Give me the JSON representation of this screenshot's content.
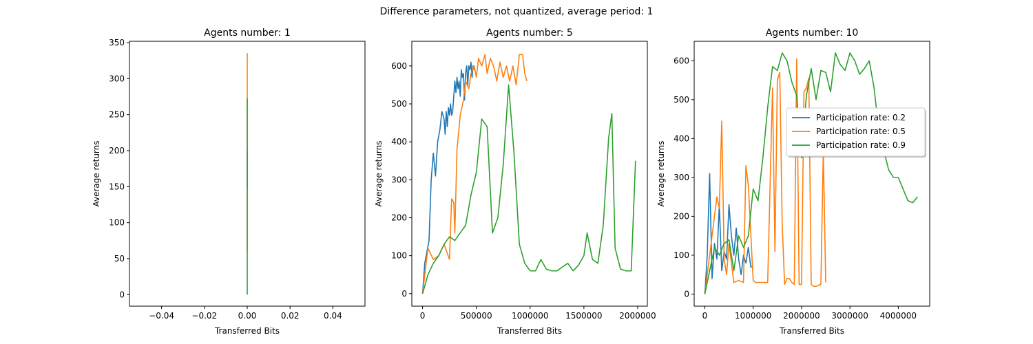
{
  "figure": {
    "suptitle": "Difference parameters, not quantized, average period: 1"
  },
  "colors": {
    "series_0.2": "#1f77b4",
    "series_0.5": "#ff7f0e",
    "series_0.9": "#2ca02c"
  },
  "chart_data": [
    {
      "type": "line",
      "title": "Agents number: 1",
      "xlabel": "Transferred Bits",
      "ylabel": "Average returns",
      "xlim": [
        -0.055,
        0.055
      ],
      "ylim": [
        -16,
        352
      ],
      "xticks": [
        -0.04,
        -0.02,
        0.0,
        0.02,
        0.04
      ],
      "xtick_labels": [
        "−0.04",
        "−0.02",
        "0.00",
        "0.02",
        "0.04"
      ],
      "yticks": [
        0,
        50,
        100,
        150,
        200,
        250,
        300,
        350
      ],
      "ytick_labels": [
        "0",
        "50",
        "100",
        "150",
        "200",
        "250",
        "300",
        "350"
      ],
      "grid": false,
      "legend": null,
      "series": [
        {
          "color_key": "series_0.5",
          "x": [
            0,
            0,
            0
          ],
          "y": [
            60,
            335,
            230
          ]
        },
        {
          "color_key": "series_0.2",
          "x": [
            0,
            0
          ],
          "y": [
            150,
            200
          ]
        },
        {
          "color_key": "series_0.9",
          "x": [
            0,
            0,
            0
          ],
          "y": [
            0,
            272,
            120
          ]
        }
      ]
    },
    {
      "type": "line",
      "title": "Agents number: 5",
      "xlabel": "Transferred Bits",
      "ylabel": "Average returns",
      "xlim": [
        -100000,
        2090000
      ],
      "ylim": [
        -33,
        665
      ],
      "xticks": [
        0,
        500000,
        1000000,
        1500000,
        2000000
      ],
      "xtick_labels": [
        "0",
        "500000",
        "1000000",
        "1500000",
        "2000000"
      ],
      "yticks": [
        0,
        100,
        200,
        300,
        400,
        500,
        600
      ],
      "ytick_labels": [
        "0",
        "100",
        "200",
        "300",
        "400",
        "500",
        "600"
      ],
      "grid": false,
      "legend": null,
      "series": [
        {
          "color_key": "series_0.2",
          "x": [
            0,
            20000,
            40000,
            60000,
            80000,
            100000,
            120000,
            140000,
            160000,
            180000,
            200000,
            210000,
            220000,
            230000,
            240000,
            250000,
            260000,
            270000,
            280000,
            290000,
            300000,
            310000,
            320000,
            330000,
            340000,
            350000,
            360000,
            370000,
            380000,
            390000,
            400000,
            410000,
            420000,
            430000,
            440000,
            450000,
            460000,
            470000,
            480000
          ],
          "y": [
            0,
            80,
            110,
            140,
            300,
            370,
            310,
            400,
            430,
            480,
            460,
            420,
            480,
            440,
            490,
            470,
            500,
            470,
            480,
            520,
            560,
            530,
            570,
            540,
            560,
            520,
            590,
            570,
            580,
            510,
            580,
            600,
            550,
            600,
            590,
            610,
            570,
            600,
            590
          ]
        },
        {
          "color_key": "series_0.5",
          "x": [
            0,
            50000,
            100000,
            150000,
            200000,
            250000,
            270000,
            290000,
            300000,
            320000,
            350000,
            380000,
            400000,
            430000,
            450000,
            480000,
            500000,
            520000,
            550000,
            580000,
            600000,
            630000,
            660000,
            690000,
            720000,
            750000,
            780000,
            810000,
            840000,
            870000,
            900000,
            930000,
            950000,
            970000
          ],
          "y": [
            0,
            120,
            90,
            100,
            130,
            90,
            250,
            240,
            160,
            380,
            470,
            510,
            560,
            540,
            580,
            600,
            570,
            620,
            600,
            630,
            580,
            620,
            600,
            560,
            610,
            570,
            600,
            560,
            600,
            550,
            630,
            630,
            580,
            560
          ]
        },
        {
          "color_key": "series_0.9",
          "x": [
            0,
            50000,
            100000,
            150000,
            200000,
            250000,
            300000,
            350000,
            400000,
            450000,
            500000,
            550000,
            600000,
            650000,
            700000,
            750000,
            800000,
            850000,
            900000,
            950000,
            1000000,
            1050000,
            1100000,
            1150000,
            1200000,
            1250000,
            1300000,
            1350000,
            1400000,
            1450000,
            1500000,
            1530000,
            1580000,
            1630000,
            1680000,
            1730000,
            1760000,
            1790000,
            1840000,
            1890000,
            1940000,
            1980000
          ],
          "y": [
            0,
            50,
            80,
            100,
            130,
            150,
            140,
            160,
            180,
            260,
            320,
            460,
            440,
            160,
            200,
            340,
            550,
            370,
            130,
            80,
            60,
            60,
            90,
            65,
            60,
            60,
            70,
            80,
            60,
            75,
            100,
            160,
            90,
            80,
            180,
            410,
            475,
            120,
            65,
            60,
            60,
            350
          ]
        }
      ]
    },
    {
      "type": "line",
      "title": "Agents number: 10",
      "xlabel": "Transferred Bits",
      "ylabel": "Average returns",
      "xlim": [
        -220000,
        4650000
      ],
      "ylim": [
        -31,
        650
      ],
      "xticks": [
        0,
        1000000,
        2000000,
        3000000,
        4000000
      ],
      "xtick_labels": [
        "0",
        "1000000",
        "2000000",
        "3000000",
        "4000000"
      ],
      "yticks": [
        0,
        100,
        200,
        300,
        400,
        500,
        600
      ],
      "ytick_labels": [
        "0",
        "100",
        "200",
        "300",
        "400",
        "500",
        "600"
      ],
      "grid": false,
      "legend": {
        "position": "center-right",
        "entries": [
          "Participation rate: 0.2",
          "Participation rate: 0.5",
          "Participation rate: 0.9"
        ]
      },
      "series": [
        {
          "color_key": "series_0.2",
          "name": "Participation rate: 0.2",
          "x": [
            0,
            50000,
            100000,
            150000,
            200000,
            250000,
            300000,
            350000,
            400000,
            450000,
            500000,
            550000,
            600000,
            650000,
            700000,
            750000,
            800000,
            850000,
            900000,
            950000,
            1000000
          ],
          "y": [
            0,
            100,
            310,
            40,
            130,
            90,
            230,
            60,
            110,
            90,
            230,
            150,
            100,
            170,
            90,
            50,
            100,
            80,
            120,
            70,
            70
          ]
        },
        {
          "color_key": "series_0.5",
          "name": "Participation rate: 0.5",
          "x": [
            0,
            100000,
            200000,
            250000,
            300000,
            350000,
            400000,
            450000,
            500000,
            600000,
            700000,
            800000,
            850000,
            900000,
            1000000,
            1050000,
            1150000,
            1300000,
            1400000,
            1450000,
            1500000,
            1550000,
            1600000,
            1650000,
            1700000,
            1750000,
            1800000,
            1850000,
            1900000,
            1950000,
            2000000,
            2050000,
            2100000,
            2150000,
            2200000,
            2250000,
            2300000,
            2400000,
            2450000,
            2500000
          ],
          "y": [
            0,
            100,
            200,
            250,
            220,
            445,
            90,
            50,
            130,
            30,
            35,
            30,
            330,
            280,
            35,
            30,
            30,
            30,
            530,
            110,
            550,
            570,
            180,
            25,
            40,
            40,
            30,
            25,
            605,
            25,
            25,
            520,
            530,
            555,
            25,
            20,
            20,
            25,
            370,
            30
          ]
        },
        {
          "color_key": "series_0.9",
          "name": "Participation rate: 0.9",
          "x": [
            0,
            100000,
            200000,
            300000,
            400000,
            500000,
            600000,
            700000,
            800000,
            900000,
            1000000,
            1100000,
            1200000,
            1300000,
            1400000,
            1500000,
            1600000,
            1700000,
            1800000,
            1900000,
            2000000,
            2100000,
            2200000,
            2300000,
            2400000,
            2500000,
            2600000,
            2700000,
            2800000,
            2900000,
            3000000,
            3100000,
            3200000,
            3300000,
            3400000,
            3500000,
            3600000,
            3700000,
            3800000,
            3900000,
            4000000,
            4100000,
            4200000,
            4300000,
            4400000
          ],
          "y": [
            0,
            60,
            120,
            100,
            130,
            140,
            60,
            150,
            120,
            150,
            270,
            240,
            350,
            480,
            585,
            575,
            620,
            600,
            545,
            510,
            350,
            510,
            580,
            500,
            575,
            570,
            520,
            620,
            590,
            575,
            620,
            600,
            565,
            580,
            600,
            530,
            420,
            370,
            320,
            300,
            300,
            270,
            240,
            235,
            250
          ]
        }
      ]
    }
  ]
}
